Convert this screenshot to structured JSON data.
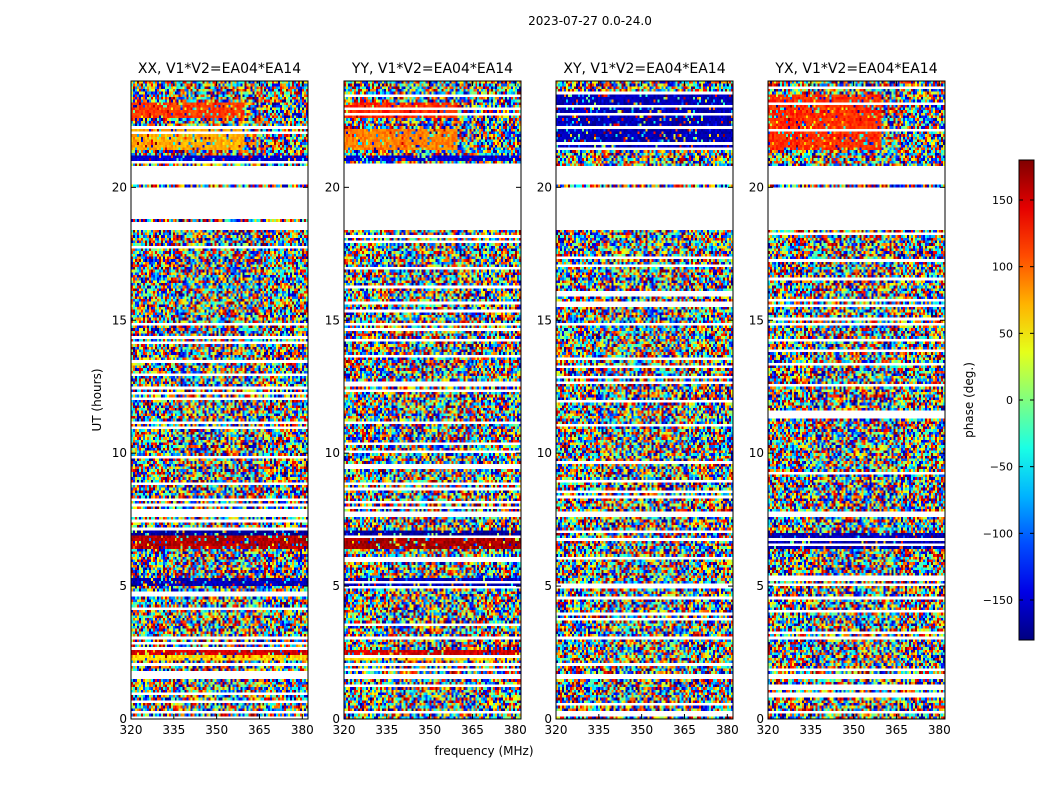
{
  "chart_data": {
    "type": "heatmap",
    "title": "2023-07-27 0.0-24.0",
    "xlabel": "frequency (MHz)",
    "ylabel": "UT (hours)",
    "xlim": [
      320,
      382
    ],
    "ylim": [
      0,
      24
    ],
    "xticks": [
      320,
      335,
      350,
      365,
      380
    ],
    "yticks": [
      0,
      5,
      10,
      15,
      20
    ],
    "panels": [
      {
        "title": "XX, V1*V2=EA04*EA14",
        "bands": [
          {
            "t0": 21.0,
            "t1": 21.2,
            "phase": -150,
            "from": 320,
            "to": 382
          },
          {
            "t0": 21.4,
            "t1": 22.2,
            "phase": 75,
            "from": 320,
            "to": 360
          },
          {
            "t0": 22.6,
            "t1": 23.2,
            "phase": 115,
            "from": 320,
            "to": 360
          },
          {
            "t0": 6.4,
            "t1": 6.9,
            "phase": 160,
            "from": 320,
            "to": 382
          },
          {
            "t0": 6.9,
            "t1": 7.1,
            "phase": -170,
            "from": 320,
            "to": 382
          },
          {
            "t0": 5.0,
            "t1": 5.3,
            "phase": -160,
            "from": 320,
            "to": 382
          },
          {
            "t0": 2.2,
            "t1": 2.4,
            "phase": 60,
            "from": 320,
            "to": 382
          },
          {
            "t0": 2.4,
            "t1": 2.6,
            "phase": 150,
            "from": 320,
            "to": 382
          }
        ]
      },
      {
        "title": "YY, V1*V2=EA04*EA14",
        "bands": [
          {
            "t0": 21.0,
            "t1": 21.2,
            "phase": -150,
            "from": 320,
            "to": 382
          },
          {
            "t0": 21.4,
            "t1": 22.2,
            "phase": 90,
            "from": 320,
            "to": 360
          },
          {
            "t0": 22.6,
            "t1": 23.2,
            "phase": 120,
            "from": 320,
            "to": 360
          },
          {
            "t0": 6.4,
            "t1": 6.9,
            "phase": 165,
            "from": 320,
            "to": 382
          },
          {
            "t0": 6.9,
            "t1": 7.1,
            "phase": -170,
            "from": 320,
            "to": 382
          },
          {
            "t0": 5.0,
            "t1": 5.3,
            "phase": -160,
            "from": 320,
            "to": 382
          },
          {
            "t0": 2.2,
            "t1": 2.4,
            "phase": 60,
            "from": 320,
            "to": 382
          },
          {
            "t0": 2.4,
            "t1": 2.6,
            "phase": 150,
            "from": 320,
            "to": 382
          }
        ]
      },
      {
        "title": "XY, V1*V2=EA04*EA14",
        "bands": [
          {
            "t0": 21.4,
            "t1": 23.5,
            "phase": -160,
            "from": 320,
            "to": 382
          }
        ]
      },
      {
        "title": "YX, V1*V2=EA04*EA14",
        "bands": [
          {
            "t0": 21.4,
            "t1": 23.5,
            "phase": 120,
            "from": 320,
            "to": 360
          },
          {
            "t0": 6.4,
            "t1": 7.0,
            "phase": -160,
            "from": 320,
            "to": 382
          }
        ]
      }
    ],
    "blank_ranges": [
      [
        18.4,
        18.7
      ],
      [
        18.8,
        20.0
      ],
      [
        20.1,
        20.8
      ],
      [
        14.8,
        14.9
      ],
      [
        7.6,
        7.8
      ],
      [
        3.0,
        3.1
      ],
      [
        1.5,
        1.7
      ],
      [
        0.3,
        0.35
      ]
    ],
    "colorbar": {
      "label": "phase (deg.)",
      "range": [
        -180,
        180
      ],
      "ticks": [
        150,
        100,
        50,
        0,
        -50,
        -100,
        -150
      ]
    },
    "colormap": "jet",
    "frame_color": "#000000"
  }
}
